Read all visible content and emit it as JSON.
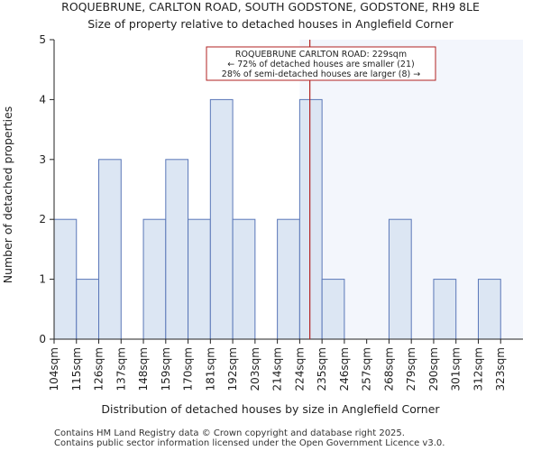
{
  "chart_data": {
    "type": "bar",
    "title": "ROQUEBRUNE, CARLTON ROAD, SOUTH GODSTONE, GODSTONE, RH9 8LE",
    "subtitle": "Size of property relative to detached houses in Anglefield Corner",
    "xlabel": "Distribution of detached houses by size in Anglefield Corner",
    "ylabel": "Number of detached properties",
    "ylim": [
      0,
      5
    ],
    "yticks": [
      "0",
      "1",
      "2",
      "3",
      "4",
      "5"
    ],
    "categories": [
      "104sqm",
      "115sqm",
      "126sqm",
      "137sqm",
      "148sqm",
      "159sqm",
      "170sqm",
      "181sqm",
      "192sqm",
      "203sqm",
      "214sqm",
      "224sqm",
      "235sqm",
      "246sqm",
      "257sqm",
      "268sqm",
      "279sqm",
      "290sqm",
      "301sqm",
      "312sqm",
      "323sqm"
    ],
    "values": [
      2,
      1,
      3,
      0,
      2,
      3,
      2,
      4,
      2,
      0,
      2,
      4,
      1,
      0,
      0,
      2,
      0,
      1,
      0,
      1,
      0
    ],
    "marker_value_sqm": 229,
    "annotation": {
      "line1": "ROQUEBRUNE CARLTON ROAD: 229sqm",
      "line2": "← 72% of detached houses are smaller (21)",
      "line3": "28% of semi-detached houses are larger (8) →"
    },
    "colors": {
      "bar_fill": "#dce6f3",
      "bar_stroke": "#5a77b8",
      "marker": "#b22222",
      "highlight": "#eef2fb"
    },
    "grid": false
  },
  "footer": {
    "line1": "Contains HM Land Registry data © Crown copyright and database right 2025.",
    "line2": "Contains public sector information licensed under the Open Government Licence v3.0."
  }
}
